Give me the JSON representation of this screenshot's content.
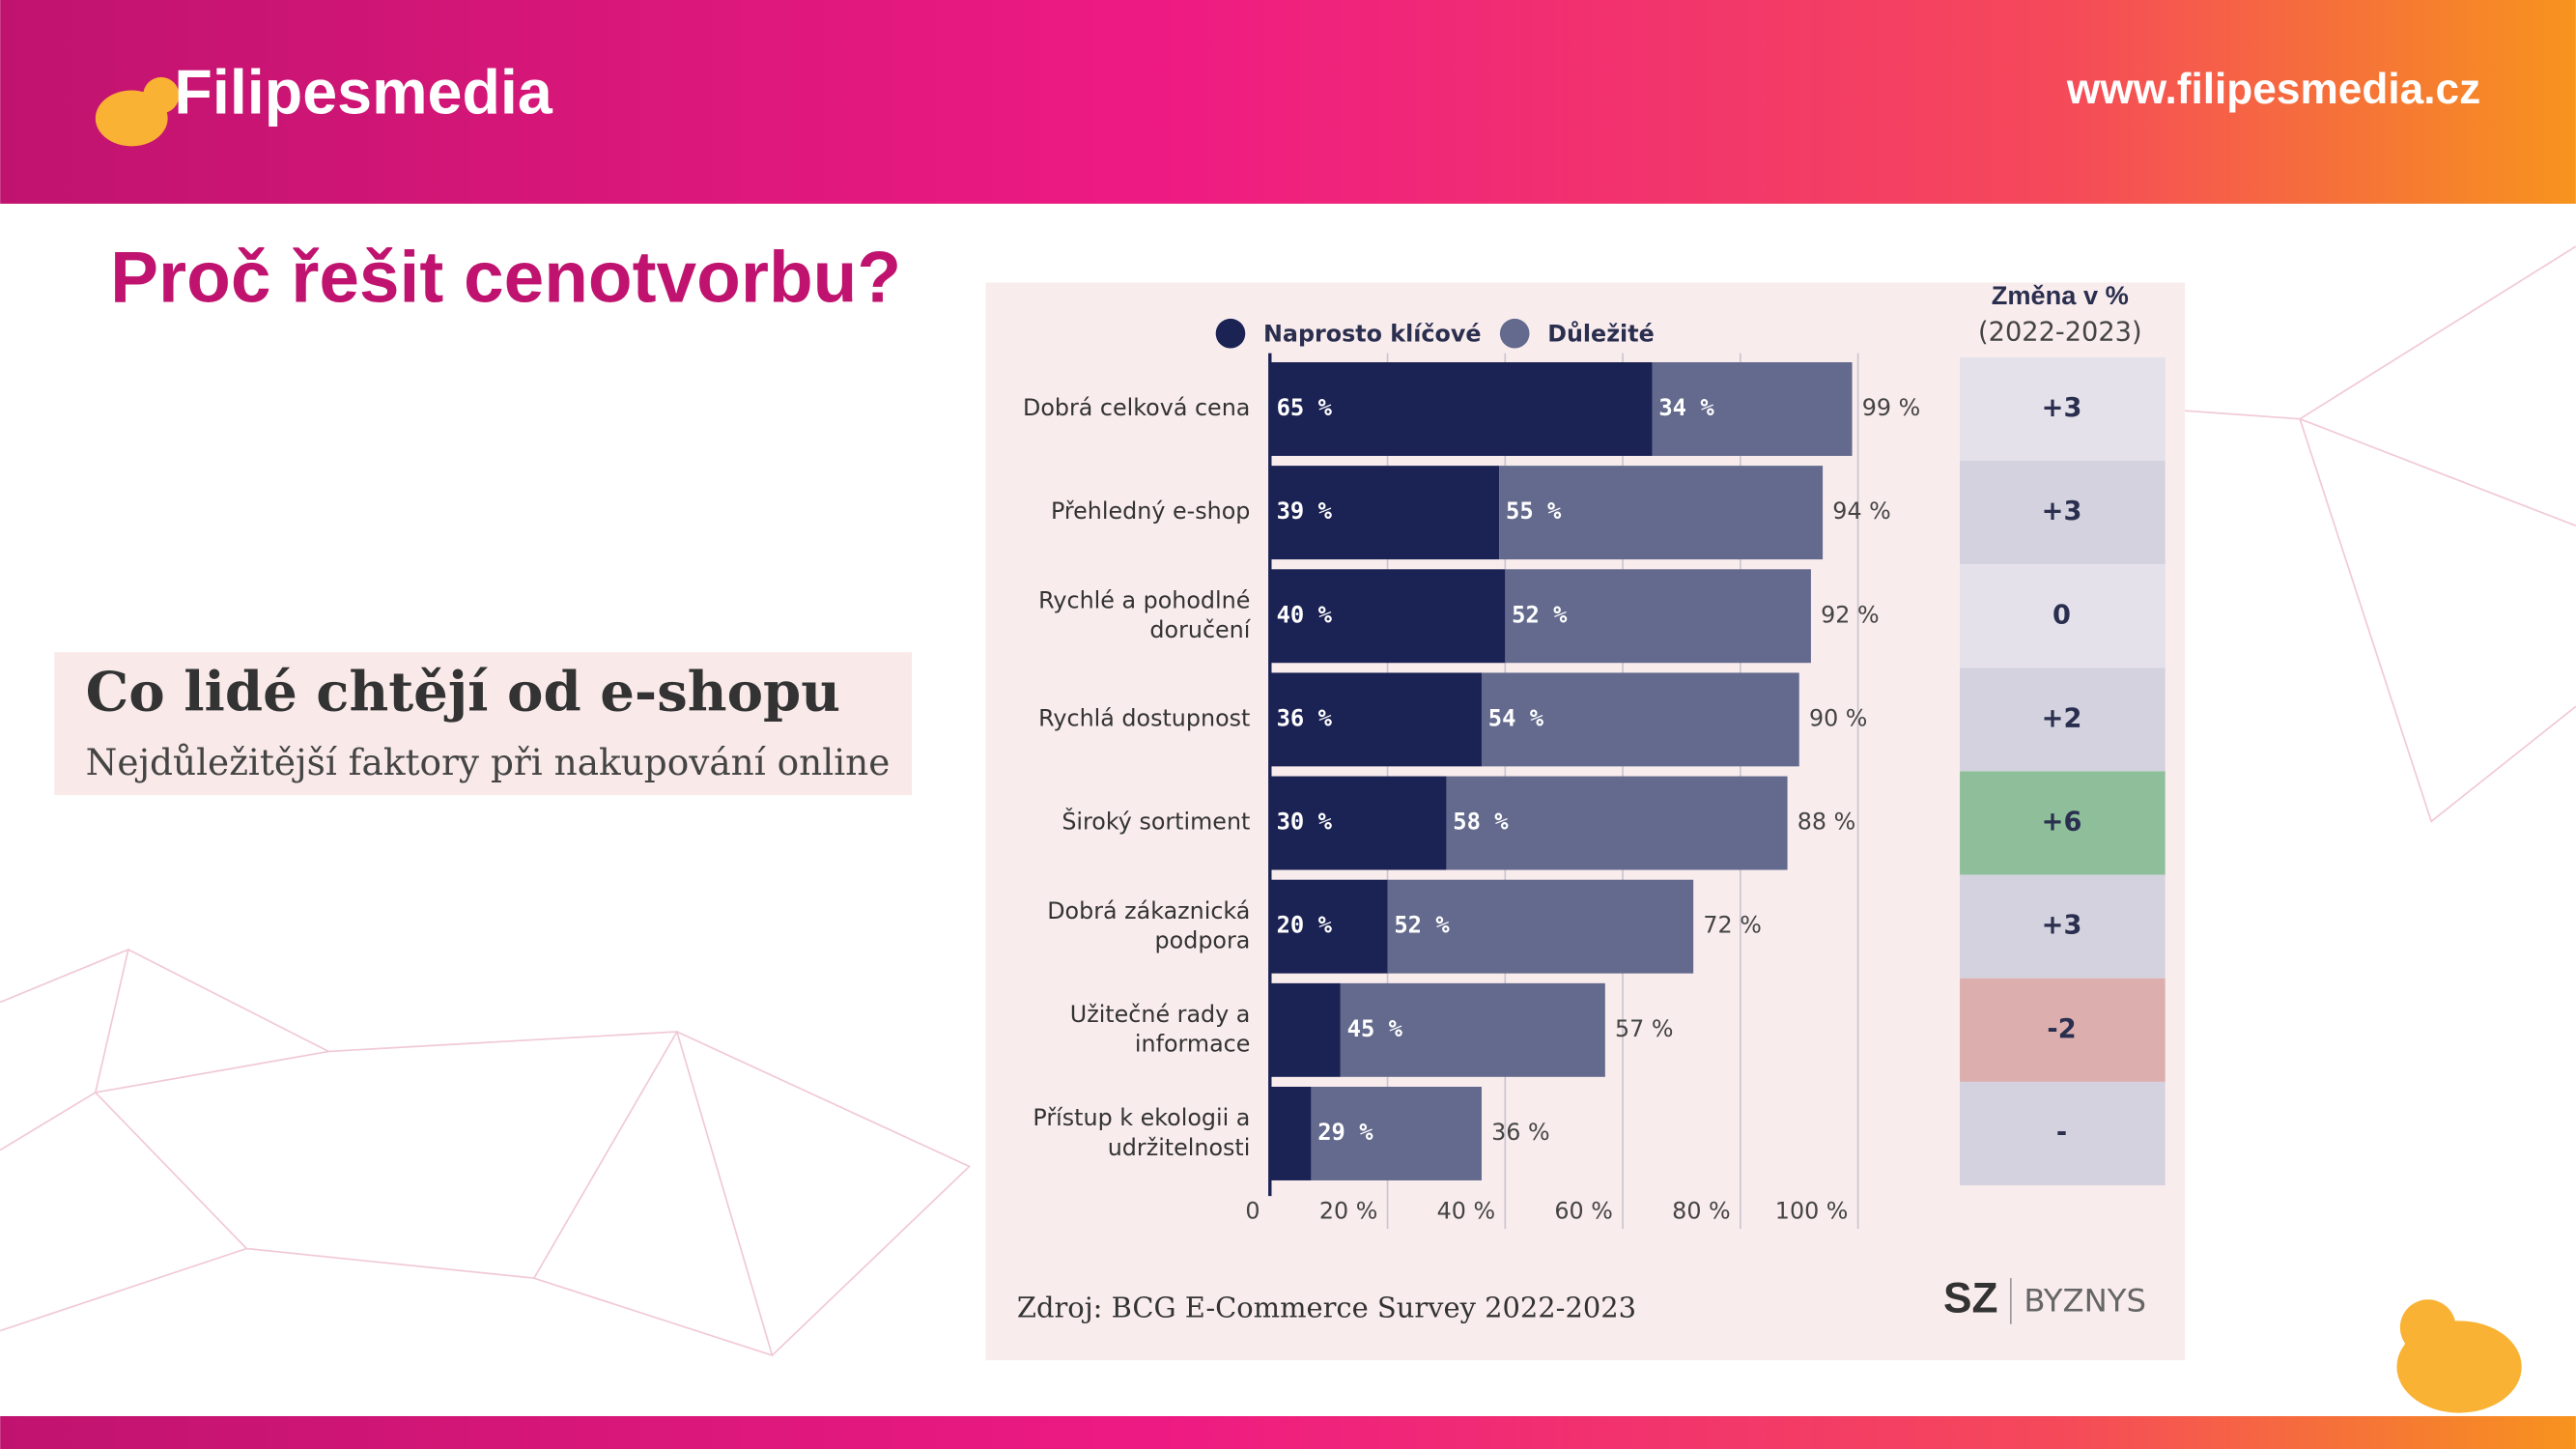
{
  "slide": {
    "brand": "Filipesmedia",
    "url": "www.filipesmedia.cz",
    "title": "Proč řešit cenotvorbu?"
  },
  "chart_data": {
    "type": "stacked_bar_horizontal",
    "title": "Co lidé chtějí od e-shopu",
    "subtitle": "Nejdůležitější faktory při nakupování online",
    "categories": [
      "Dobrá celková cena",
      "Přehledný e-shop",
      "Rychlé a pohodlné doručení",
      "Rychlá dostupnost",
      "Široký sortiment",
      "Dobrá zákaznická podpora",
      "Užitečné rady a informace",
      "Přístup k ekologii a udržitelnosti"
    ],
    "series": [
      {
        "name": "Naprosto klíčové",
        "color": "#1b2254",
        "values": [
          65,
          39,
          40,
          36,
          30,
          20,
          12,
          7
        ],
        "value_labels": [
          "65 %",
          "39 %",
          "40 %",
          "36 %",
          "30 %",
          "20 %",
          null,
          null
        ]
      },
      {
        "name": "Důležité",
        "color": "#636a8d",
        "values": [
          34,
          55,
          52,
          54,
          58,
          52,
          45,
          29
        ],
        "value_labels": [
          "34 %",
          "55 %",
          "52 %",
          "54 %",
          "58 %",
          "52 %",
          "45 %",
          "29 %"
        ]
      }
    ],
    "totals": [
      99,
      94,
      92,
      90,
      88,
      72,
      57,
      36
    ],
    "total_labels": [
      "99 %",
      "94 %",
      "92 %",
      "90 %",
      "88 %",
      "72 %",
      "57 %",
      "36 %"
    ],
    "change_title": "Změna v %",
    "change_subtitle": "(2022-2023)",
    "changes": [
      3,
      3,
      0,
      2,
      6,
      3,
      -2,
      null
    ],
    "change_labels": [
      "+3",
      "+3",
      "0",
      "+2",
      "+6",
      "+3",
      "-2",
      "-"
    ],
    "change_colors": [
      "#e4e1ea",
      "#d3d2de",
      "#e4e1ea",
      "#d3d2de",
      "#8fbf9a",
      "#d3d2de",
      "#dcaeae",
      "#d3d2de"
    ],
    "xlim": [
      0,
      100
    ],
    "xticks": [
      0,
      {
        "value": 20,
        "label": "20 %"
      },
      {
        "value": 40,
        "label": "40 %"
      },
      {
        "value": 60,
        "label": "60 %"
      },
      {
        "value": 80,
        "label": "80 %"
      },
      {
        "value": 100,
        "label": "100 %"
      }
    ],
    "grid": true,
    "legend": "top",
    "source": "Zdroj: BCG E-Commerce Survey 2022-2023",
    "publisher_mark": "SZ",
    "publisher_name": "BYZNYS"
  }
}
